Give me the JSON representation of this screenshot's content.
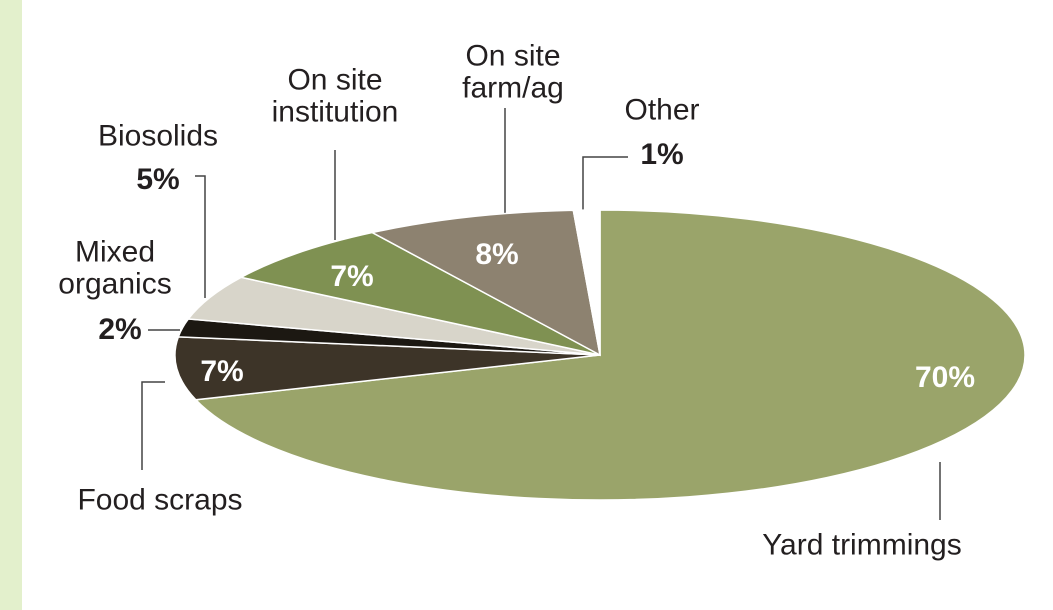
{
  "chart_data": {
    "type": "pie",
    "categories": [
      "Yard trimmings",
      "Food scraps",
      "Mixed organics",
      "Biosolids",
      "On site institution",
      "On site farm/ag",
      "Other"
    ],
    "values": [
      70,
      7,
      2,
      5,
      7,
      8,
      1
    ],
    "value_labels": [
      "70%",
      "7%",
      "2%",
      "5%",
      "7%",
      "8%",
      "1%"
    ],
    "colors": [
      "#9aa46a",
      "#3d3428",
      "#1c1812",
      "#d8d5ca",
      "#7f9152",
      "#8d8270",
      "#ffffff"
    ]
  }
}
